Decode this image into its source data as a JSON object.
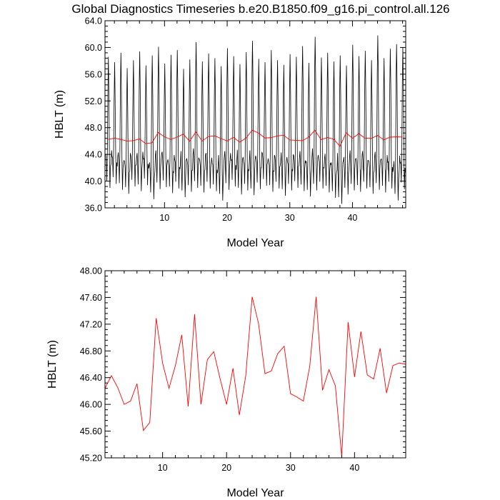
{
  "figure": {
    "title": "Global Diagnostics Timeseries b.e20.B1850.f09_g16.pi_control.all.126"
  },
  "colors": {
    "monthly_line": "#000000",
    "annual_line": "#ff0000",
    "axes": "#000000",
    "background": "#ffffff"
  },
  "chart_data": [
    {
      "type": "line",
      "title": "Global Diagnostics Timeseries b.e20.B1850.f09_g16.pi_control.all.126",
      "xlabel": "Model Year",
      "ylabel": "HBLT (m)",
      "xlim": [
        0.5,
        48.5
      ],
      "ylim": [
        36.0,
        64.0
      ],
      "xticks": [
        10,
        20,
        30,
        40
      ],
      "xtick_labels": [
        "10",
        "20",
        "30",
        "40"
      ],
      "yticks": [
        36,
        40,
        44,
        48,
        52,
        56,
        60,
        64
      ],
      "ytick_labels": [
        "36.0",
        "40.0",
        "44.0",
        "48.0",
        "52.0",
        "56.0",
        "60.0",
        "64.0"
      ],
      "grid": false,
      "series": [
        {
          "color": "#000000",
          "kind": "monthly",
          "annual_peak": [
            58.6,
            57.8,
            59.2,
            56.9,
            58.1,
            59.4,
            57.3,
            58.8,
            60.1,
            57.6,
            58.9,
            59.6,
            56.8,
            58.2,
            60.8,
            57.9,
            59.1,
            58.4,
            57.2,
            59.9,
            58.7,
            57.5,
            59.3,
            61.0,
            58.3,
            57.8,
            59.6,
            58.1,
            57.4,
            59.0,
            58.6,
            60.2,
            57.7,
            61.6,
            58.5,
            59.2,
            57.9,
            58.8,
            57.3,
            60.4,
            58.7,
            59.5,
            58.1,
            61.8,
            58.4,
            59.8,
            60.5,
            60.0
          ],
          "annual_trough": [
            39.0,
            39.6,
            38.7,
            38.1,
            39.2,
            38.5,
            39.4,
            37.3,
            38.8,
            39.1,
            38.2,
            38.9,
            37.6,
            38.4,
            39.0,
            38.3,
            38.9,
            38.5,
            37.1,
            38.7,
            39.2,
            38.0,
            38.6,
            37.9,
            38.8,
            39.3,
            38.4,
            38.9,
            37.8,
            38.6,
            39.0,
            38.5,
            37.7,
            38.6,
            38.9,
            38.3,
            37.5,
            36.6,
            38.0,
            38.6,
            38.4,
            38.9,
            38.1,
            38.7,
            38.3,
            38.9,
            37.1,
            38.8
          ],
          "annual_secondary_peak": [
            44.0,
            43.6,
            44.3,
            42.9,
            43.8,
            44.2,
            43.3,
            42.8,
            44.6,
            44.4,
            42.7,
            43.2,
            44.5,
            43.0,
            44.9,
            43.1,
            44.2,
            42.6,
            43.9,
            44.5,
            43.1,
            44.7,
            42.9,
            44.6,
            43.4,
            44.2,
            42.8,
            43.7,
            44.3,
            42.9,
            43.8,
            44.5,
            43.0,
            44.9,
            43.3,
            44.1,
            42.8,
            44.2,
            43.6,
            44.6,
            43.2,
            44.5,
            42.9,
            44.4,
            43.3,
            42.8,
            43.0,
            42.7
          ]
        }
      ]
    },
    {
      "type": "line",
      "title": "",
      "xlabel": "Model Year",
      "ylabel": "HBLT (m)",
      "xlim": [
        1,
        48
      ],
      "ylim": [
        45.2,
        48.0
      ],
      "xticks": [
        10,
        20,
        30,
        40
      ],
      "xtick_labels": [
        "10",
        "20",
        "30",
        "40"
      ],
      "yticks": [
        45.2,
        45.6,
        46.0,
        46.4,
        46.8,
        47.2,
        47.6,
        48.0
      ],
      "ytick_labels": [
        "45.20",
        "45.60",
        "46.00",
        "46.40",
        "46.80",
        "47.20",
        "47.60",
        "48.00"
      ],
      "grid": false,
      "series": [
        {
          "color": "#ff0000",
          "kind": "annual",
          "x": [
            1,
            2,
            3,
            4,
            5,
            6,
            7,
            8,
            9,
            10,
            11,
            12,
            13,
            14,
            15,
            16,
            17,
            18,
            19,
            20,
            21,
            22,
            23,
            24,
            25,
            26,
            27,
            28,
            29,
            30,
            31,
            32,
            33,
            34,
            35,
            36,
            37,
            38,
            39,
            40,
            41,
            42,
            43,
            44,
            45,
            46,
            47,
            48
          ],
          "values": [
            46.24,
            46.43,
            46.25,
            46.0,
            46.05,
            46.31,
            45.61,
            45.73,
            47.29,
            46.62,
            46.24,
            46.58,
            47.04,
            45.97,
            47.35,
            46.0,
            46.67,
            46.79,
            46.38,
            46.0,
            46.54,
            45.84,
            46.43,
            47.61,
            47.21,
            46.46,
            46.5,
            46.76,
            46.87,
            46.16,
            46.11,
            46.05,
            46.57,
            47.61,
            46.21,
            46.52,
            46.28,
            45.22,
            47.23,
            46.41,
            47.09,
            46.44,
            46.38,
            46.84,
            46.17,
            46.58,
            46.62,
            46.6
          ]
        }
      ]
    }
  ]
}
